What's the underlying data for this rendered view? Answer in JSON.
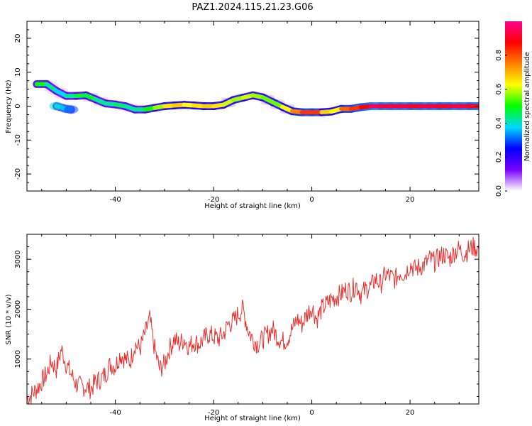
{
  "title": "PAZ1.2024.115.21.23.G06",
  "chart_data": [
    {
      "type": "heatmap",
      "xlabel": "Height of straight line (km)",
      "ylabel": "Frequency (Hz)",
      "xlim": [
        -58,
        34
      ],
      "ylim": [
        -25,
        25
      ],
      "xticks": [
        -40,
        -20,
        0,
        20
      ],
      "yticks": [
        -20,
        -10,
        0,
        10,
        20
      ],
      "colorbar": {
        "label": "Normalized spectral amplitude",
        "range": [
          0,
          1
        ],
        "ticks": [
          0.0,
          0.2,
          0.4,
          0.6,
          0.8
        ],
        "colormap": [
          "#ffffff",
          "#7a00ff",
          "#0000ff",
          "#00d8ff",
          "#00ff00",
          "#ffff00",
          "#ff8000",
          "#ff0000",
          "#ff0090"
        ]
      },
      "ridge": {
        "x": [
          -56,
          -54,
          -52,
          -50,
          -48,
          -46,
          -44,
          -42,
          -40,
          -38,
          -36,
          -34,
          -32,
          -30,
          -28,
          -26,
          -24,
          -22,
          -20,
          -18,
          -16,
          -14,
          -12,
          -10,
          -8,
          -6,
          -4,
          -2,
          0,
          2,
          4,
          6,
          8,
          10,
          12,
          14,
          16,
          18,
          20,
          22,
          24,
          26,
          28,
          30,
          32,
          34
        ],
        "y": [
          6.5,
          6.5,
          4.5,
          3.0,
          3.0,
          3.2,
          2.0,
          0.8,
          0.5,
          0.0,
          -1.0,
          -1.0,
          -0.5,
          0.0,
          0.2,
          0.4,
          0.2,
          0.0,
          0.0,
          0.4,
          1.8,
          2.5,
          3.2,
          2.6,
          1.2,
          -0.2,
          -1.5,
          -1.8,
          -1.8,
          -1.8,
          -1.6,
          -0.8,
          -0.8,
          -0.3,
          0.0,
          0.0,
          0.0,
          0.0,
          0.0,
          0.0,
          0.0,
          0.0,
          0.0,
          0.0,
          0.0,
          0.0
        ],
        "amplitude": [
          0.5,
          0.5,
          0.35,
          0.4,
          0.45,
          0.5,
          0.45,
          0.4,
          0.45,
          0.45,
          0.4,
          0.45,
          0.55,
          0.6,
          0.7,
          0.65,
          0.6,
          0.7,
          0.65,
          0.65,
          0.55,
          0.6,
          0.6,
          0.55,
          0.55,
          0.55,
          0.7,
          0.8,
          0.85,
          0.8,
          0.55,
          0.7,
          0.85,
          0.8,
          0.95,
          0.95,
          0.9,
          0.95,
          0.9,
          0.9,
          0.95,
          0.9,
          0.9,
          0.95,
          0.9,
          0.9
        ]
      },
      "secondary_blob": {
        "x": [
          -52,
          -50,
          -49
        ],
        "y": [
          0.0,
          -0.8,
          -1.0
        ],
        "amplitude": [
          0.4,
          0.35,
          0.3
        ]
      }
    },
    {
      "type": "line",
      "xlabel": "Height of straight line (km)",
      "ylabel": "SNR (10 * v/v)",
      "xlim": [
        -58,
        34
      ],
      "ylim": [
        100,
        3500
      ],
      "xticks": [
        -40,
        -20,
        0,
        20
      ],
      "yticks": [
        1000,
        2000,
        3000
      ],
      "line_color": "#e8312f",
      "series": [
        {
          "x": [
            -58,
            -56,
            -54,
            -53,
            -52,
            -51,
            -50,
            -49,
            -48,
            -47,
            -46,
            -45,
            -44,
            -43,
            -42,
            -41,
            -40,
            -39,
            -38,
            -37,
            -36,
            -35,
            -34,
            -33,
            -32,
            -31,
            -30,
            -29,
            -28,
            -27,
            -26,
            -25,
            -24,
            -23,
            -22,
            -21,
            -20,
            -19,
            -18,
            -17,
            -16,
            -15,
            -14,
            -13,
            -12,
            -11,
            -10,
            -9,
            -8,
            -7,
            -6,
            -5,
            -4,
            -3,
            -2,
            -1,
            0,
            1,
            2,
            3,
            4,
            5,
            6,
            7,
            8,
            9,
            10,
            11,
            12,
            13,
            14,
            15,
            16,
            17,
            18,
            19,
            20,
            21,
            22,
            23,
            24,
            25,
            26,
            27,
            28,
            29,
            30,
            31,
            32,
            33,
            34
          ],
          "y": [
            200,
            400,
            700,
            950,
            800,
            1200,
            900,
            700,
            500,
            450,
            450,
            400,
            550,
            600,
            700,
            900,
            850,
            1100,
            1000,
            950,
            1300,
            1200,
            1500,
            1800,
            1200,
            800,
            900,
            1200,
            1400,
            1300,
            1400,
            1250,
            1350,
            1300,
            1400,
            1500,
            1450,
            1400,
            1500,
            1700,
            1750,
            1900,
            2000,
            1600,
            1400,
            1300,
            1400,
            1500,
            1600,
            1450,
            1350,
            1400,
            1600,
            1800,
            1700,
            1900,
            2050,
            1800,
            2000,
            2100,
            2200,
            2250,
            2300,
            2400,
            2350,
            2500,
            2300,
            2400,
            2450,
            2600,
            2500,
            2700,
            2650,
            2600,
            2750,
            2700,
            2900,
            2800,
            2850,
            2900,
            3000,
            2950,
            3050,
            3100,
            3000,
            3150,
            3200,
            3100,
            3200,
            3250,
            3200
          ]
        }
      ]
    }
  ]
}
